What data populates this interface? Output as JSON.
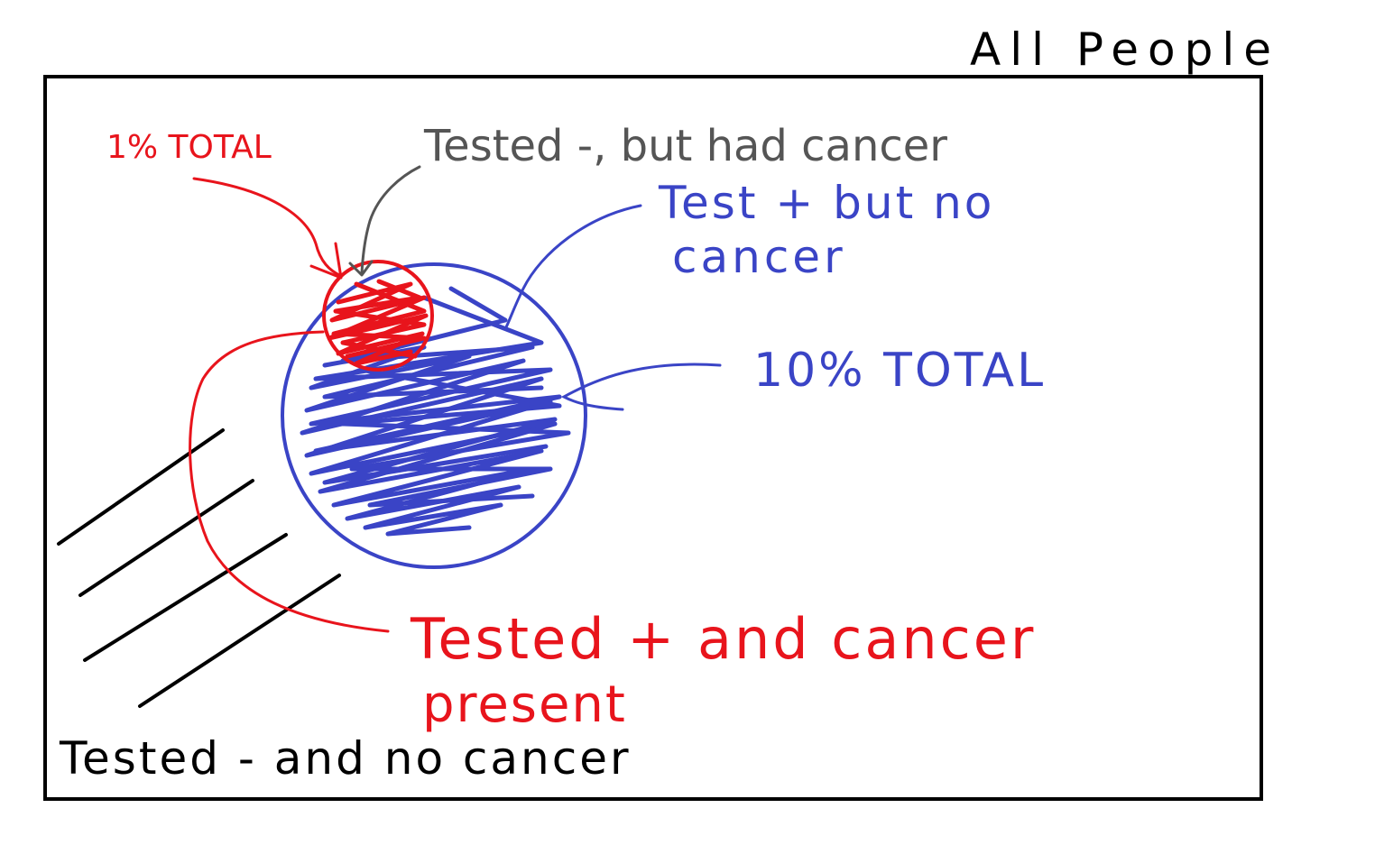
{
  "title": "All People",
  "labels": {
    "red_percent": "1% TOTAL",
    "tested_neg_had_cancer": "Tested -, but had cancer",
    "test_pos_no_cancer_line1": "Test + but no",
    "test_pos_no_cancer_line2": "cancer",
    "blue_percent": "10% TOTAL",
    "tested_pos_cancer_line1": "Tested + and cancer",
    "tested_pos_cancer_line2": "present",
    "tested_neg_no_cancer": "Tested - and no cancer"
  },
  "colors": {
    "frame": "#000000",
    "gray_annotation": "#555555",
    "blue_set": "#3a44c6",
    "red_set": "#e8141c",
    "hatch": "#000000"
  }
}
